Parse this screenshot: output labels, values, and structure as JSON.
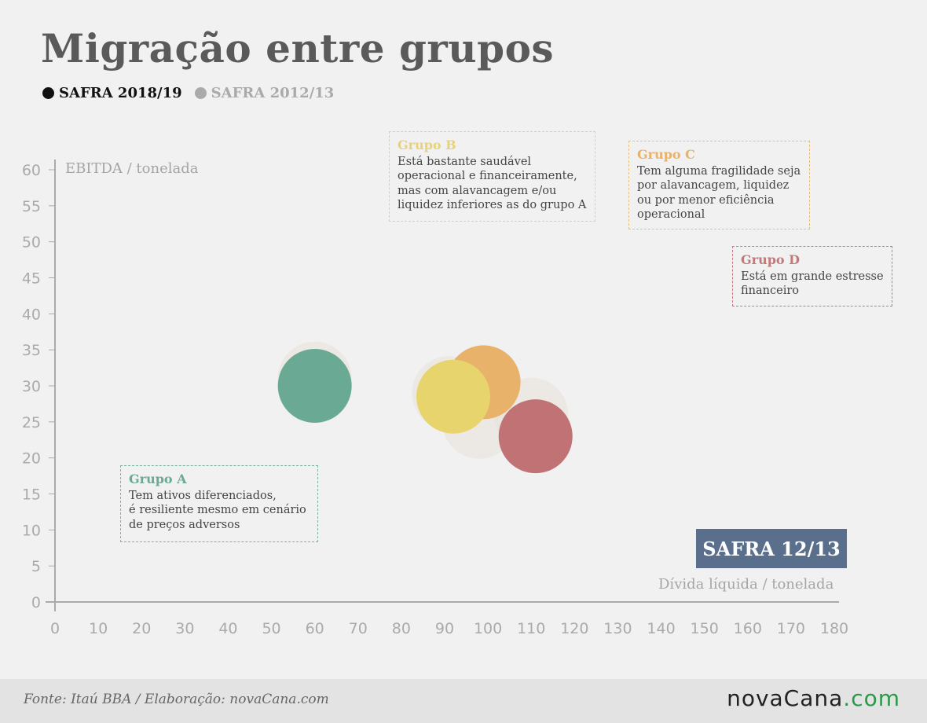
{
  "title": "Migração entre grupos",
  "legend": {
    "current": "SAFRA 2018/19",
    "previous": "SAFRA 2012/13"
  },
  "colors": {
    "grupo_a": "#6aaa95",
    "grupo_b": "#e8d46c",
    "grupo_c": "#e8b26a",
    "grupo_d": "#c07275",
    "background_bubble": "#e8e0d8",
    "badge": "#5a6f8c"
  },
  "groups": {
    "a": {
      "name": "Grupo A",
      "lines": [
        "Tem ativos diferenciados,",
        "é resiliente mesmo em cenário",
        "de preços adversos"
      ]
    },
    "b": {
      "name": "Grupo B",
      "lines": [
        "Está bastante saudável",
        "operacional e financeiramente,",
        "mas com alavancagem e/ou",
        "liquidez inferiores as do grupo A"
      ]
    },
    "c": {
      "name": "Grupo C",
      "lines": [
        "Tem alguma fragilidade seja",
        "por alavancagem, liquidez",
        "ou por menor eficiência",
        "operacional"
      ]
    },
    "d": {
      "name": "Grupo D",
      "lines": [
        "Está em grande estresse",
        "financeiro"
      ]
    }
  },
  "badge": "SAFRA 12/13",
  "footer": {
    "source": "Fonte: Itaú BBA / Elaboração: novaCana.com",
    "logo_main": "novaCana",
    "logo_suffix": ".com"
  },
  "chart_data": {
    "type": "scatter",
    "ylabel": "EBITDA / tonelada",
    "xlabel": "Dívida líquida / tonelada",
    "xlim": [
      0,
      180
    ],
    "ylim": [
      0,
      60
    ],
    "xticks": [
      0,
      10,
      20,
      30,
      40,
      50,
      60,
      70,
      80,
      90,
      100,
      110,
      120,
      130,
      140,
      150,
      160,
      170,
      180
    ],
    "yticks": [
      0,
      5,
      10,
      15,
      20,
      25,
      30,
      35,
      40,
      45,
      50,
      55,
      60
    ],
    "series": [
      {
        "name": "SAFRA 2012/13",
        "points": [
          {
            "group": "Grupo A",
            "x": 60,
            "y": 31
          },
          {
            "group": "Grupo B",
            "x": 91,
            "y": 29
          },
          {
            "group": "Grupo C",
            "x": 98,
            "y": 25
          },
          {
            "group": "Grupo D",
            "x": 110,
            "y": 26
          }
        ]
      },
      {
        "name": "SAFRA 2018/19",
        "points": [
          {
            "group": "Grupo A",
            "x": 60,
            "y": 30
          },
          {
            "group": "Grupo C",
            "x": 99,
            "y": 30.5
          },
          {
            "group": "Grupo B",
            "x": 92,
            "y": 28.5
          },
          {
            "group": "Grupo D",
            "x": 111,
            "y": 23
          }
        ]
      }
    ]
  }
}
